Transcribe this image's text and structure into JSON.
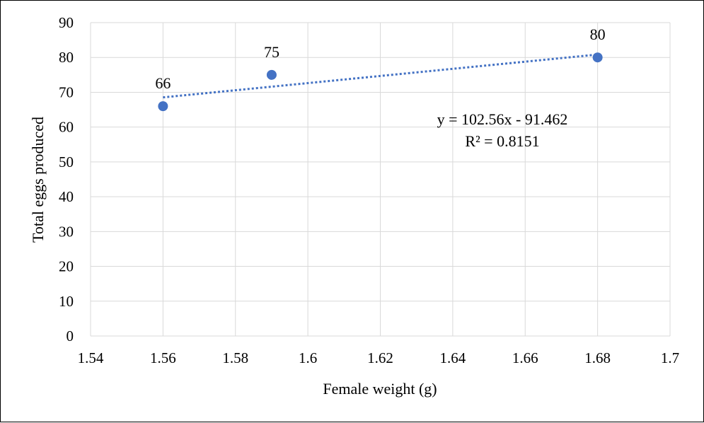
{
  "chart_data": {
    "type": "scatter",
    "title": "",
    "xlabel": "Female weight (g)",
    "ylabel": "Total eggs produced",
    "xlim": [
      1.54,
      1.7
    ],
    "ylim": [
      0,
      90
    ],
    "x_ticks": [
      "1.54",
      "1.56",
      "1.58",
      "1.6",
      "1.62",
      "1.64",
      "1.66",
      "1.68",
      "1.7"
    ],
    "y_ticks": [
      "0",
      "10",
      "20",
      "30",
      "40",
      "50",
      "60",
      "70",
      "80",
      "90"
    ],
    "grid": true,
    "legend": "none",
    "series": [
      {
        "points": [
          {
            "x": 1.56,
            "y": 66,
            "label": "66"
          },
          {
            "x": 1.59,
            "y": 75,
            "label": "75"
          },
          {
            "x": 1.68,
            "y": 80,
            "label": "80"
          }
        ],
        "color": "#4472c4"
      }
    ],
    "trendline": {
      "type": "linear",
      "slope": 102.56,
      "intercept": -91.462,
      "x_range": [
        1.56,
        1.68
      ],
      "style": "dotted",
      "color": "#4472c4",
      "equation": "y = 102.56x - 91.462",
      "r_squared": "R² = 0.8151"
    }
  }
}
